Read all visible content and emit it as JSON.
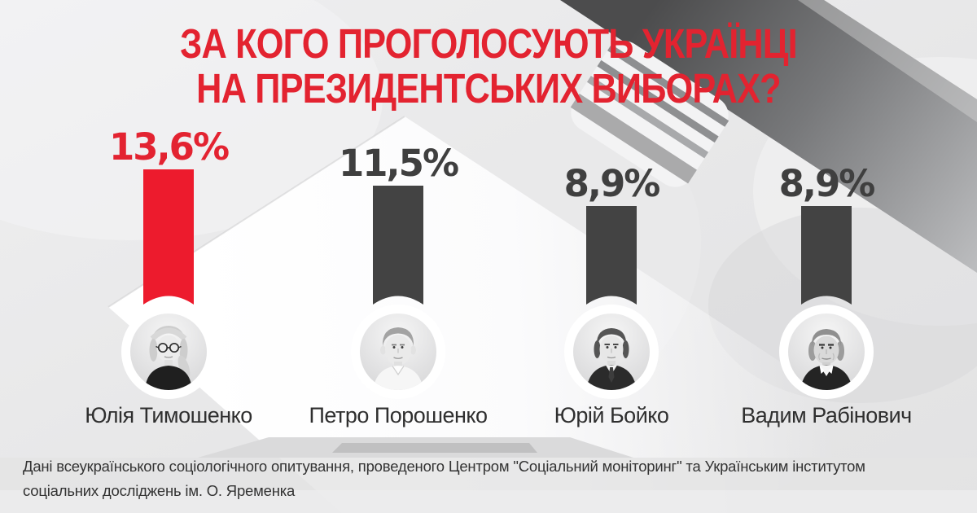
{
  "title": {
    "line1": "ЗА КОГО ПРОГОЛОСУЮТЬ УКРАЇНЦІ",
    "line2": "НА ПРЕЗИДЕНТСЬКИХ ВИБОРАХ?"
  },
  "chart_data": {
    "type": "bar",
    "orientation": "vertical",
    "title": "ЗА КОГО ПРОГОЛОСУЮТЬ УКРАЇНЦІ НА ПРЕЗИДЕНТСЬКИХ ВИБОРАХ?",
    "categories": [
      "Юлія Тимошенко",
      "Петро Порошенко",
      "Юрій Бойко",
      "Вадим Рабінович"
    ],
    "values": [
      13.6,
      11.5,
      8.9,
      8.9
    ],
    "value_labels": [
      "13,6%",
      "11,5%",
      "8,9%",
      "8,9%"
    ],
    "highlight_index": 0,
    "bar_colors": [
      "#ed1b2d",
      "#434343",
      "#434343",
      "#434343"
    ],
    "label_colors": [
      "#e32331",
      "#3f3f3f",
      "#3f3f3f",
      "#3f3f3f"
    ],
    "xlabel": "",
    "ylabel": "",
    "ylim": [
      0,
      15
    ],
    "grid": false,
    "legend": false
  },
  "footer": {
    "line1": "Дані всеукраїнського соціологічного опитування, проведеного Центром \"Соціальний моніторинг\" та Українським інститутом",
    "line2": "соціальних досліджень ім. О. Яременка"
  },
  "colors": {
    "accent_red": "#ed1b2d",
    "bar_gray": "#434343",
    "title_red": "#e32330",
    "text_dark": "#2f2f2f",
    "background": "#e8e8e9"
  }
}
